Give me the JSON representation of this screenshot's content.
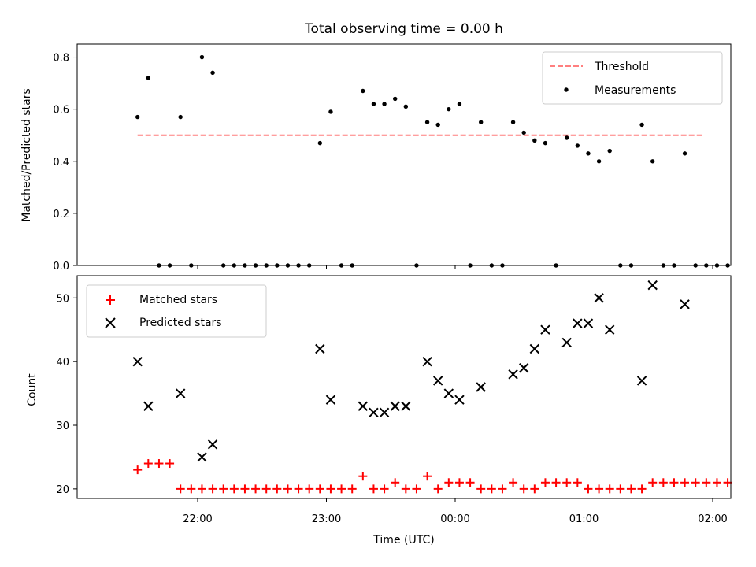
{
  "chart_data": [
    {
      "type": "scatter",
      "title": "Total observing time = 0.00 h",
      "ylabel": "Matched/Predicted stars",
      "xlabel": "",
      "ylim": [
        0,
        0.85
      ],
      "yticks": [
        "0.0",
        "0.2",
        "0.4",
        "0.6",
        "0.8"
      ],
      "legend_position": "top-right",
      "threshold": {
        "name": "Threshold",
        "value": 0.5,
        "color": "#ff7f7f",
        "x_start": "21:32",
        "x_end": "01:55"
      },
      "series": [
        {
          "name": "Measurements",
          "color": "#000000",
          "points": [
            [
              "21:32",
              0.57
            ],
            [
              "21:37",
              0.72
            ],
            [
              "21:42",
              0.0
            ],
            [
              "21:47",
              0.0
            ],
            [
              "21:52",
              0.57
            ],
            [
              "21:57",
              0.0
            ],
            [
              "22:02",
              0.8
            ],
            [
              "22:07",
              0.74
            ],
            [
              "22:12",
              0.0
            ],
            [
              "22:17",
              0.0
            ],
            [
              "22:22",
              0.0
            ],
            [
              "22:27",
              0.0
            ],
            [
              "22:32",
              0.0
            ],
            [
              "22:37",
              0.0
            ],
            [
              "22:42",
              0.0
            ],
            [
              "22:47",
              0.0
            ],
            [
              "22:52",
              0.0
            ],
            [
              "22:57",
              0.47
            ],
            [
              "23:02",
              0.59
            ],
            [
              "23:07",
              0.0
            ],
            [
              "23:12",
              0.0
            ],
            [
              "23:17",
              0.67
            ],
            [
              "23:22",
              0.62
            ],
            [
              "23:27",
              0.62
            ],
            [
              "23:32",
              0.64
            ],
            [
              "23:37",
              0.61
            ],
            [
              "23:42",
              0.0
            ],
            [
              "23:47",
              0.55
            ],
            [
              "23:52",
              0.54
            ],
            [
              "23:57",
              0.6
            ],
            [
              "00:02",
              0.62
            ],
            [
              "00:07",
              0.0
            ],
            [
              "00:12",
              0.55
            ],
            [
              "00:17",
              0.0
            ],
            [
              "00:22",
              0.0
            ],
            [
              "00:27",
              0.55
            ],
            [
              "00:32",
              0.51
            ],
            [
              "00:37",
              0.48
            ],
            [
              "00:42",
              0.47
            ],
            [
              "00:47",
              0.0
            ],
            [
              "00:52",
              0.49
            ],
            [
              "00:57",
              0.46
            ],
            [
              "01:02",
              0.43
            ],
            [
              "01:07",
              0.4
            ],
            [
              "01:12",
              0.44
            ],
            [
              "01:17",
              0.0
            ],
            [
              "01:22",
              0.0
            ],
            [
              "01:27",
              0.54
            ],
            [
              "01:32",
              0.4
            ],
            [
              "01:37",
              0.0
            ],
            [
              "01:42",
              0.0
            ],
            [
              "01:47",
              0.43
            ],
            [
              "01:52",
              0.0
            ],
            [
              "01:57",
              0.0
            ],
            [
              "02:02",
              0.0
            ],
            [
              "02:07",
              0.0
            ]
          ]
        }
      ]
    },
    {
      "type": "scatter",
      "title": "",
      "xlabel": "Time (UTC)",
      "ylabel": "Count",
      "ylim": [
        18.5,
        53.5
      ],
      "yticks": [
        "20",
        "30",
        "40",
        "50"
      ],
      "xticks": [
        "22:00",
        "23:00",
        "00:00",
        "01:00",
        "02:00"
      ],
      "legend_position": "top-left",
      "series": [
        {
          "name": "Matched stars",
          "color": "#ff0000",
          "marker": "plus",
          "points": [
            [
              "21:32",
              23
            ],
            [
              "21:37",
              24
            ],
            [
              "21:42",
              24
            ],
            [
              "21:47",
              24
            ],
            [
              "21:52",
              20
            ],
            [
              "21:57",
              20
            ],
            [
              "22:02",
              20
            ],
            [
              "22:07",
              20
            ],
            [
              "22:12",
              20
            ],
            [
              "22:17",
              20
            ],
            [
              "22:22",
              20
            ],
            [
              "22:27",
              20
            ],
            [
              "22:32",
              20
            ],
            [
              "22:37",
              20
            ],
            [
              "22:42",
              20
            ],
            [
              "22:47",
              20
            ],
            [
              "22:52",
              20
            ],
            [
              "22:57",
              20
            ],
            [
              "23:02",
              20
            ],
            [
              "23:07",
              20
            ],
            [
              "23:12",
              20
            ],
            [
              "23:17",
              22
            ],
            [
              "23:22",
              20
            ],
            [
              "23:27",
              20
            ],
            [
              "23:32",
              21
            ],
            [
              "23:37",
              20
            ],
            [
              "23:42",
              20
            ],
            [
              "23:47",
              22
            ],
            [
              "23:52",
              20
            ],
            [
              "23:57",
              21
            ],
            [
              "00:02",
              21
            ],
            [
              "00:07",
              21
            ],
            [
              "00:12",
              20
            ],
            [
              "00:17",
              20
            ],
            [
              "00:22",
              20
            ],
            [
              "00:27",
              21
            ],
            [
              "00:32",
              20
            ],
            [
              "00:37",
              20
            ],
            [
              "00:42",
              21
            ],
            [
              "00:47",
              21
            ],
            [
              "00:52",
              21
            ],
            [
              "00:57",
              21
            ],
            [
              "01:02",
              20
            ],
            [
              "01:07",
              20
            ],
            [
              "01:12",
              20
            ],
            [
              "01:17",
              20
            ],
            [
              "01:22",
              20
            ],
            [
              "01:27",
              20
            ],
            [
              "01:32",
              21
            ],
            [
              "01:37",
              21
            ],
            [
              "01:42",
              21
            ],
            [
              "01:47",
              21
            ],
            [
              "01:52",
              21
            ],
            [
              "01:57",
              21
            ],
            [
              "02:02",
              21
            ],
            [
              "02:07",
              21
            ]
          ]
        },
        {
          "name": "Predicted stars",
          "color": "#000000",
          "marker": "x",
          "points": [
            [
              "21:32",
              40
            ],
            [
              "21:37",
              33
            ],
            [
              "21:52",
              35
            ],
            [
              "22:02",
              25
            ],
            [
              "22:07",
              27
            ],
            [
              "22:57",
              42
            ],
            [
              "23:02",
              34
            ],
            [
              "23:17",
              33
            ],
            [
              "23:22",
              32
            ],
            [
              "23:27",
              32
            ],
            [
              "23:32",
              33
            ],
            [
              "23:37",
              33
            ],
            [
              "23:47",
              40
            ],
            [
              "23:52",
              37
            ],
            [
              "23:57",
              35
            ],
            [
              "00:02",
              34
            ],
            [
              "00:12",
              36
            ],
            [
              "00:27",
              38
            ],
            [
              "00:32",
              39
            ],
            [
              "00:37",
              42
            ],
            [
              "00:42",
              45
            ],
            [
              "00:52",
              43
            ],
            [
              "00:57",
              46
            ],
            [
              "01:02",
              46
            ],
            [
              "01:07",
              50
            ],
            [
              "01:12",
              45
            ],
            [
              "01:27",
              37
            ],
            [
              "01:32",
              52
            ],
            [
              "01:47",
              49
            ]
          ]
        }
      ]
    }
  ]
}
